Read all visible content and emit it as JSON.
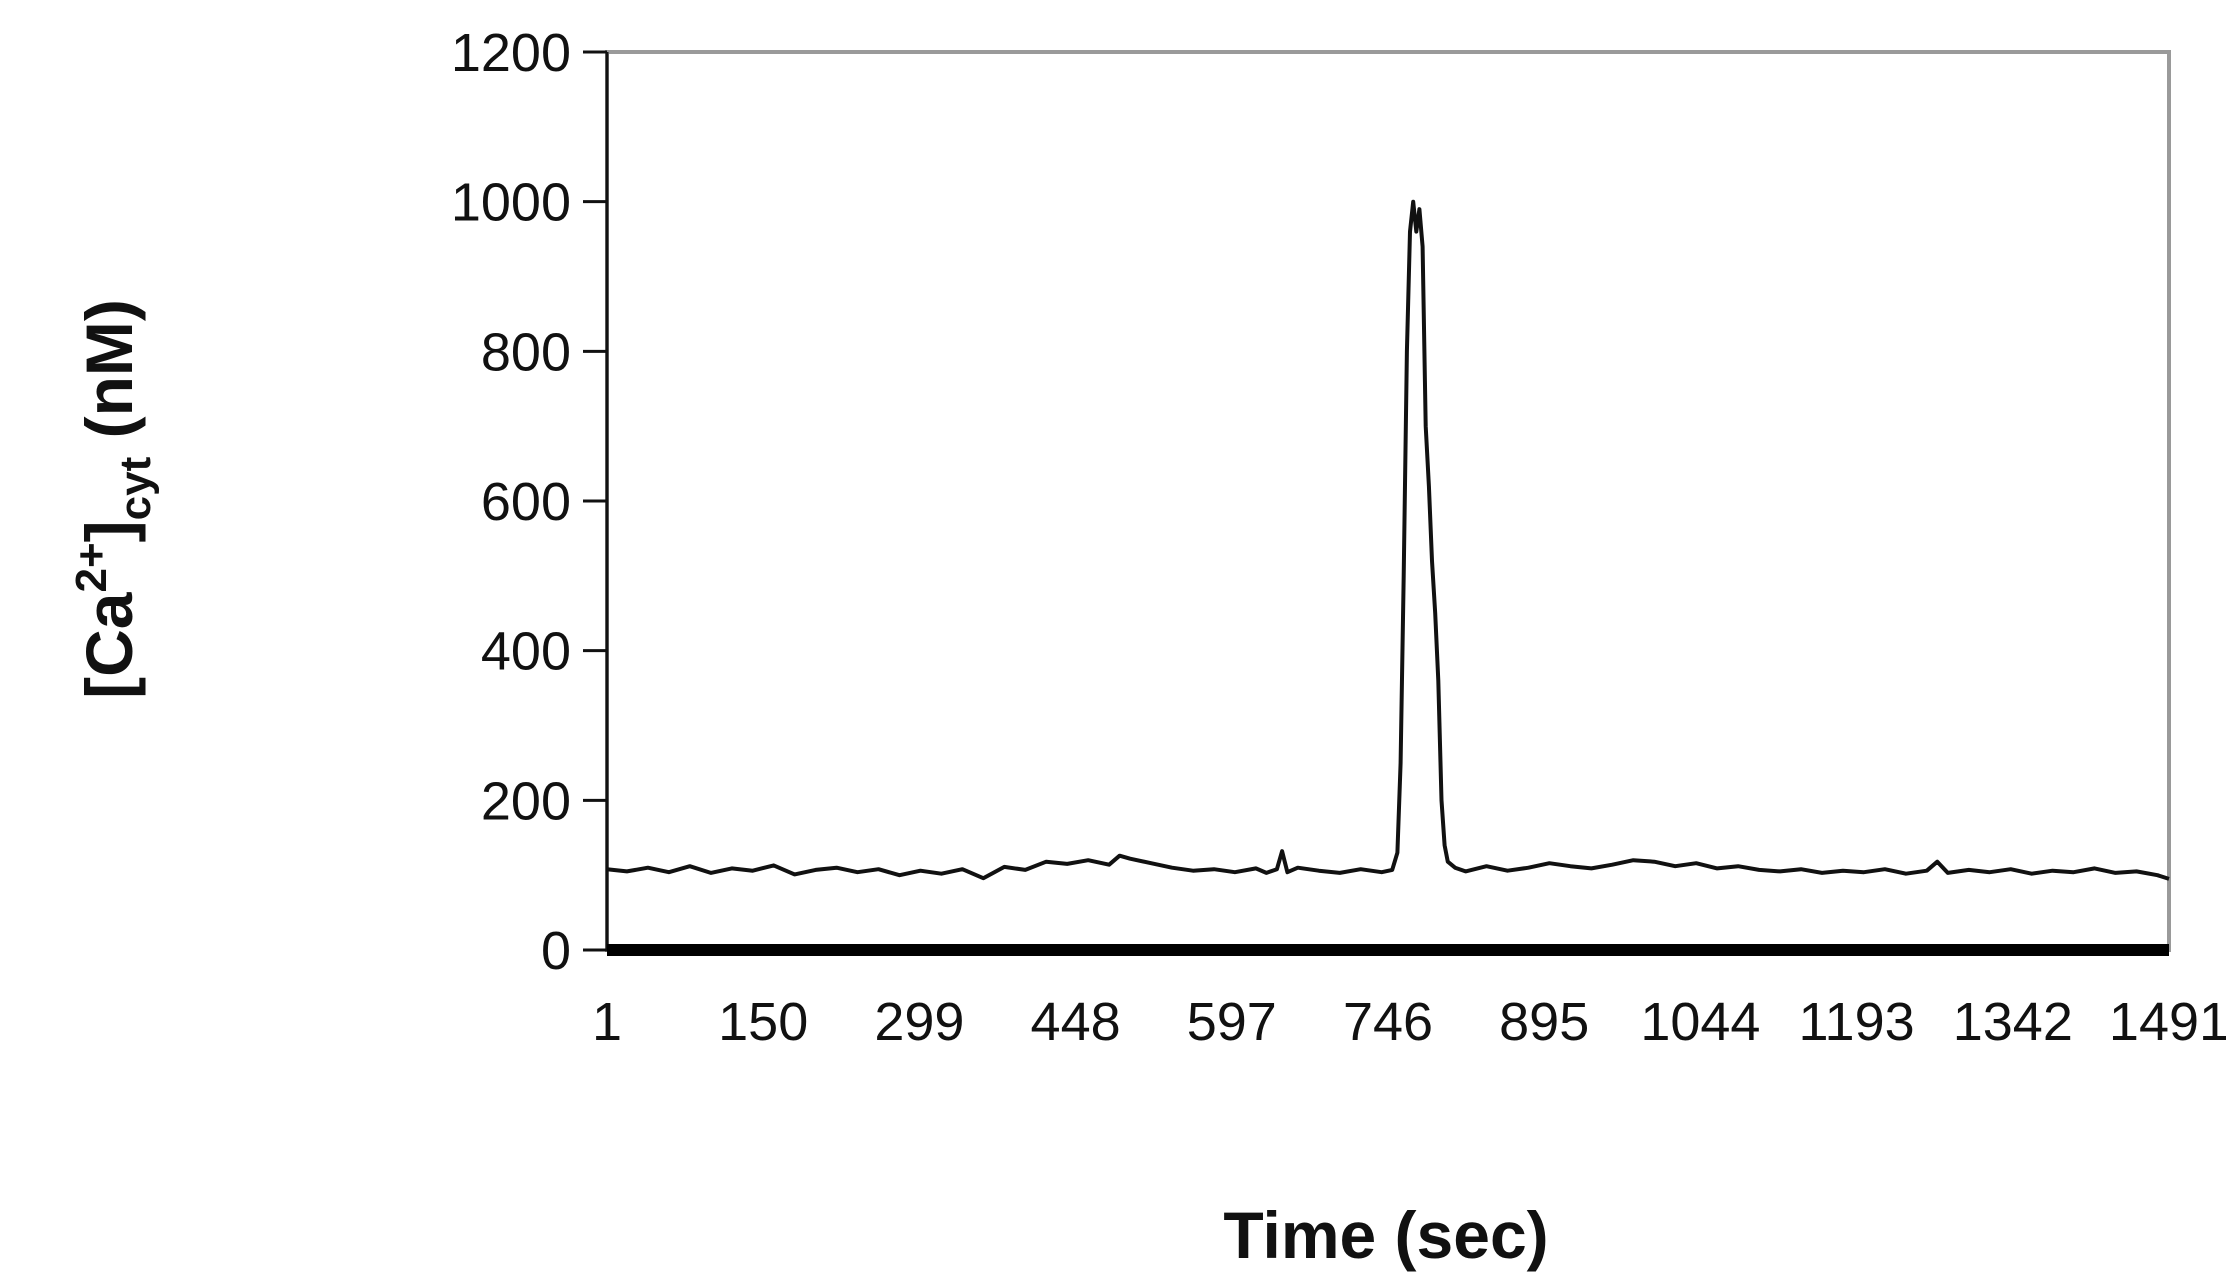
{
  "chart_data": {
    "type": "line",
    "title": "",
    "xlabel": "Time (sec)",
    "ylabel": {
      "base": "[Ca",
      "sup": "2+",
      "close": "]",
      "sub": "cyt",
      "unit": " (nM)"
    },
    "xlim": [
      1,
      1491
    ],
    "ylim": [
      0,
      1200
    ],
    "x_ticks": [
      1,
      150,
      299,
      448,
      597,
      746,
      895,
      1044,
      1193,
      1342,
      1491
    ],
    "y_ticks": [
      0,
      200,
      400,
      600,
      800,
      1000,
      1200
    ],
    "grid": false,
    "legend": "none",
    "baseline_y": 0,
    "series": [
      {
        "color": "#111111",
        "points": [
          [
            1,
            108
          ],
          [
            20,
            105
          ],
          [
            40,
            110
          ],
          [
            60,
            104
          ],
          [
            80,
            112
          ],
          [
            100,
            103
          ],
          [
            120,
            109
          ],
          [
            140,
            106
          ],
          [
            160,
            113
          ],
          [
            180,
            101
          ],
          [
            200,
            107
          ],
          [
            220,
            110
          ],
          [
            240,
            104
          ],
          [
            260,
            108
          ],
          [
            280,
            100
          ],
          [
            300,
            106
          ],
          [
            320,
            102
          ],
          [
            340,
            108
          ],
          [
            360,
            96
          ],
          [
            380,
            111
          ],
          [
            400,
            107
          ],
          [
            420,
            118
          ],
          [
            440,
            115
          ],
          [
            460,
            120
          ],
          [
            480,
            114
          ],
          [
            490,
            126
          ],
          [
            500,
            122
          ],
          [
            520,
            116
          ],
          [
            540,
            110
          ],
          [
            560,
            106
          ],
          [
            580,
            108
          ],
          [
            600,
            104
          ],
          [
            620,
            109
          ],
          [
            630,
            103
          ],
          [
            640,
            108
          ],
          [
            645,
            132
          ],
          [
            650,
            104
          ],
          [
            660,
            110
          ],
          [
            680,
            106
          ],
          [
            700,
            103
          ],
          [
            720,
            108
          ],
          [
            740,
            104
          ],
          [
            750,
            107
          ],
          [
            755,
            130
          ],
          [
            758,
            250
          ],
          [
            761,
            500
          ],
          [
            764,
            800
          ],
          [
            767,
            960
          ],
          [
            770,
            1000
          ],
          [
            773,
            960
          ],
          [
            776,
            990
          ],
          [
            779,
            940
          ],
          [
            782,
            700
          ],
          [
            785,
            620
          ],
          [
            788,
            520
          ],
          [
            791,
            450
          ],
          [
            794,
            360
          ],
          [
            797,
            200
          ],
          [
            800,
            140
          ],
          [
            803,
            118
          ],
          [
            810,
            110
          ],
          [
            820,
            105
          ],
          [
            840,
            112
          ],
          [
            860,
            106
          ],
          [
            880,
            110
          ],
          [
            900,
            116
          ],
          [
            920,
            112
          ],
          [
            940,
            109
          ],
          [
            960,
            114
          ],
          [
            980,
            120
          ],
          [
            1000,
            118
          ],
          [
            1020,
            112
          ],
          [
            1040,
            116
          ],
          [
            1060,
            109
          ],
          [
            1080,
            112
          ],
          [
            1100,
            107
          ],
          [
            1120,
            105
          ],
          [
            1140,
            108
          ],
          [
            1160,
            103
          ],
          [
            1180,
            106
          ],
          [
            1200,
            104
          ],
          [
            1220,
            108
          ],
          [
            1240,
            102
          ],
          [
            1260,
            106
          ],
          [
            1270,
            118
          ],
          [
            1280,
            103
          ],
          [
            1300,
            107
          ],
          [
            1320,
            104
          ],
          [
            1340,
            108
          ],
          [
            1360,
            102
          ],
          [
            1380,
            106
          ],
          [
            1400,
            104
          ],
          [
            1420,
            109
          ],
          [
            1440,
            103
          ],
          [
            1460,
            105
          ],
          [
            1480,
            100
          ],
          [
            1491,
            95
          ]
        ]
      }
    ]
  }
}
